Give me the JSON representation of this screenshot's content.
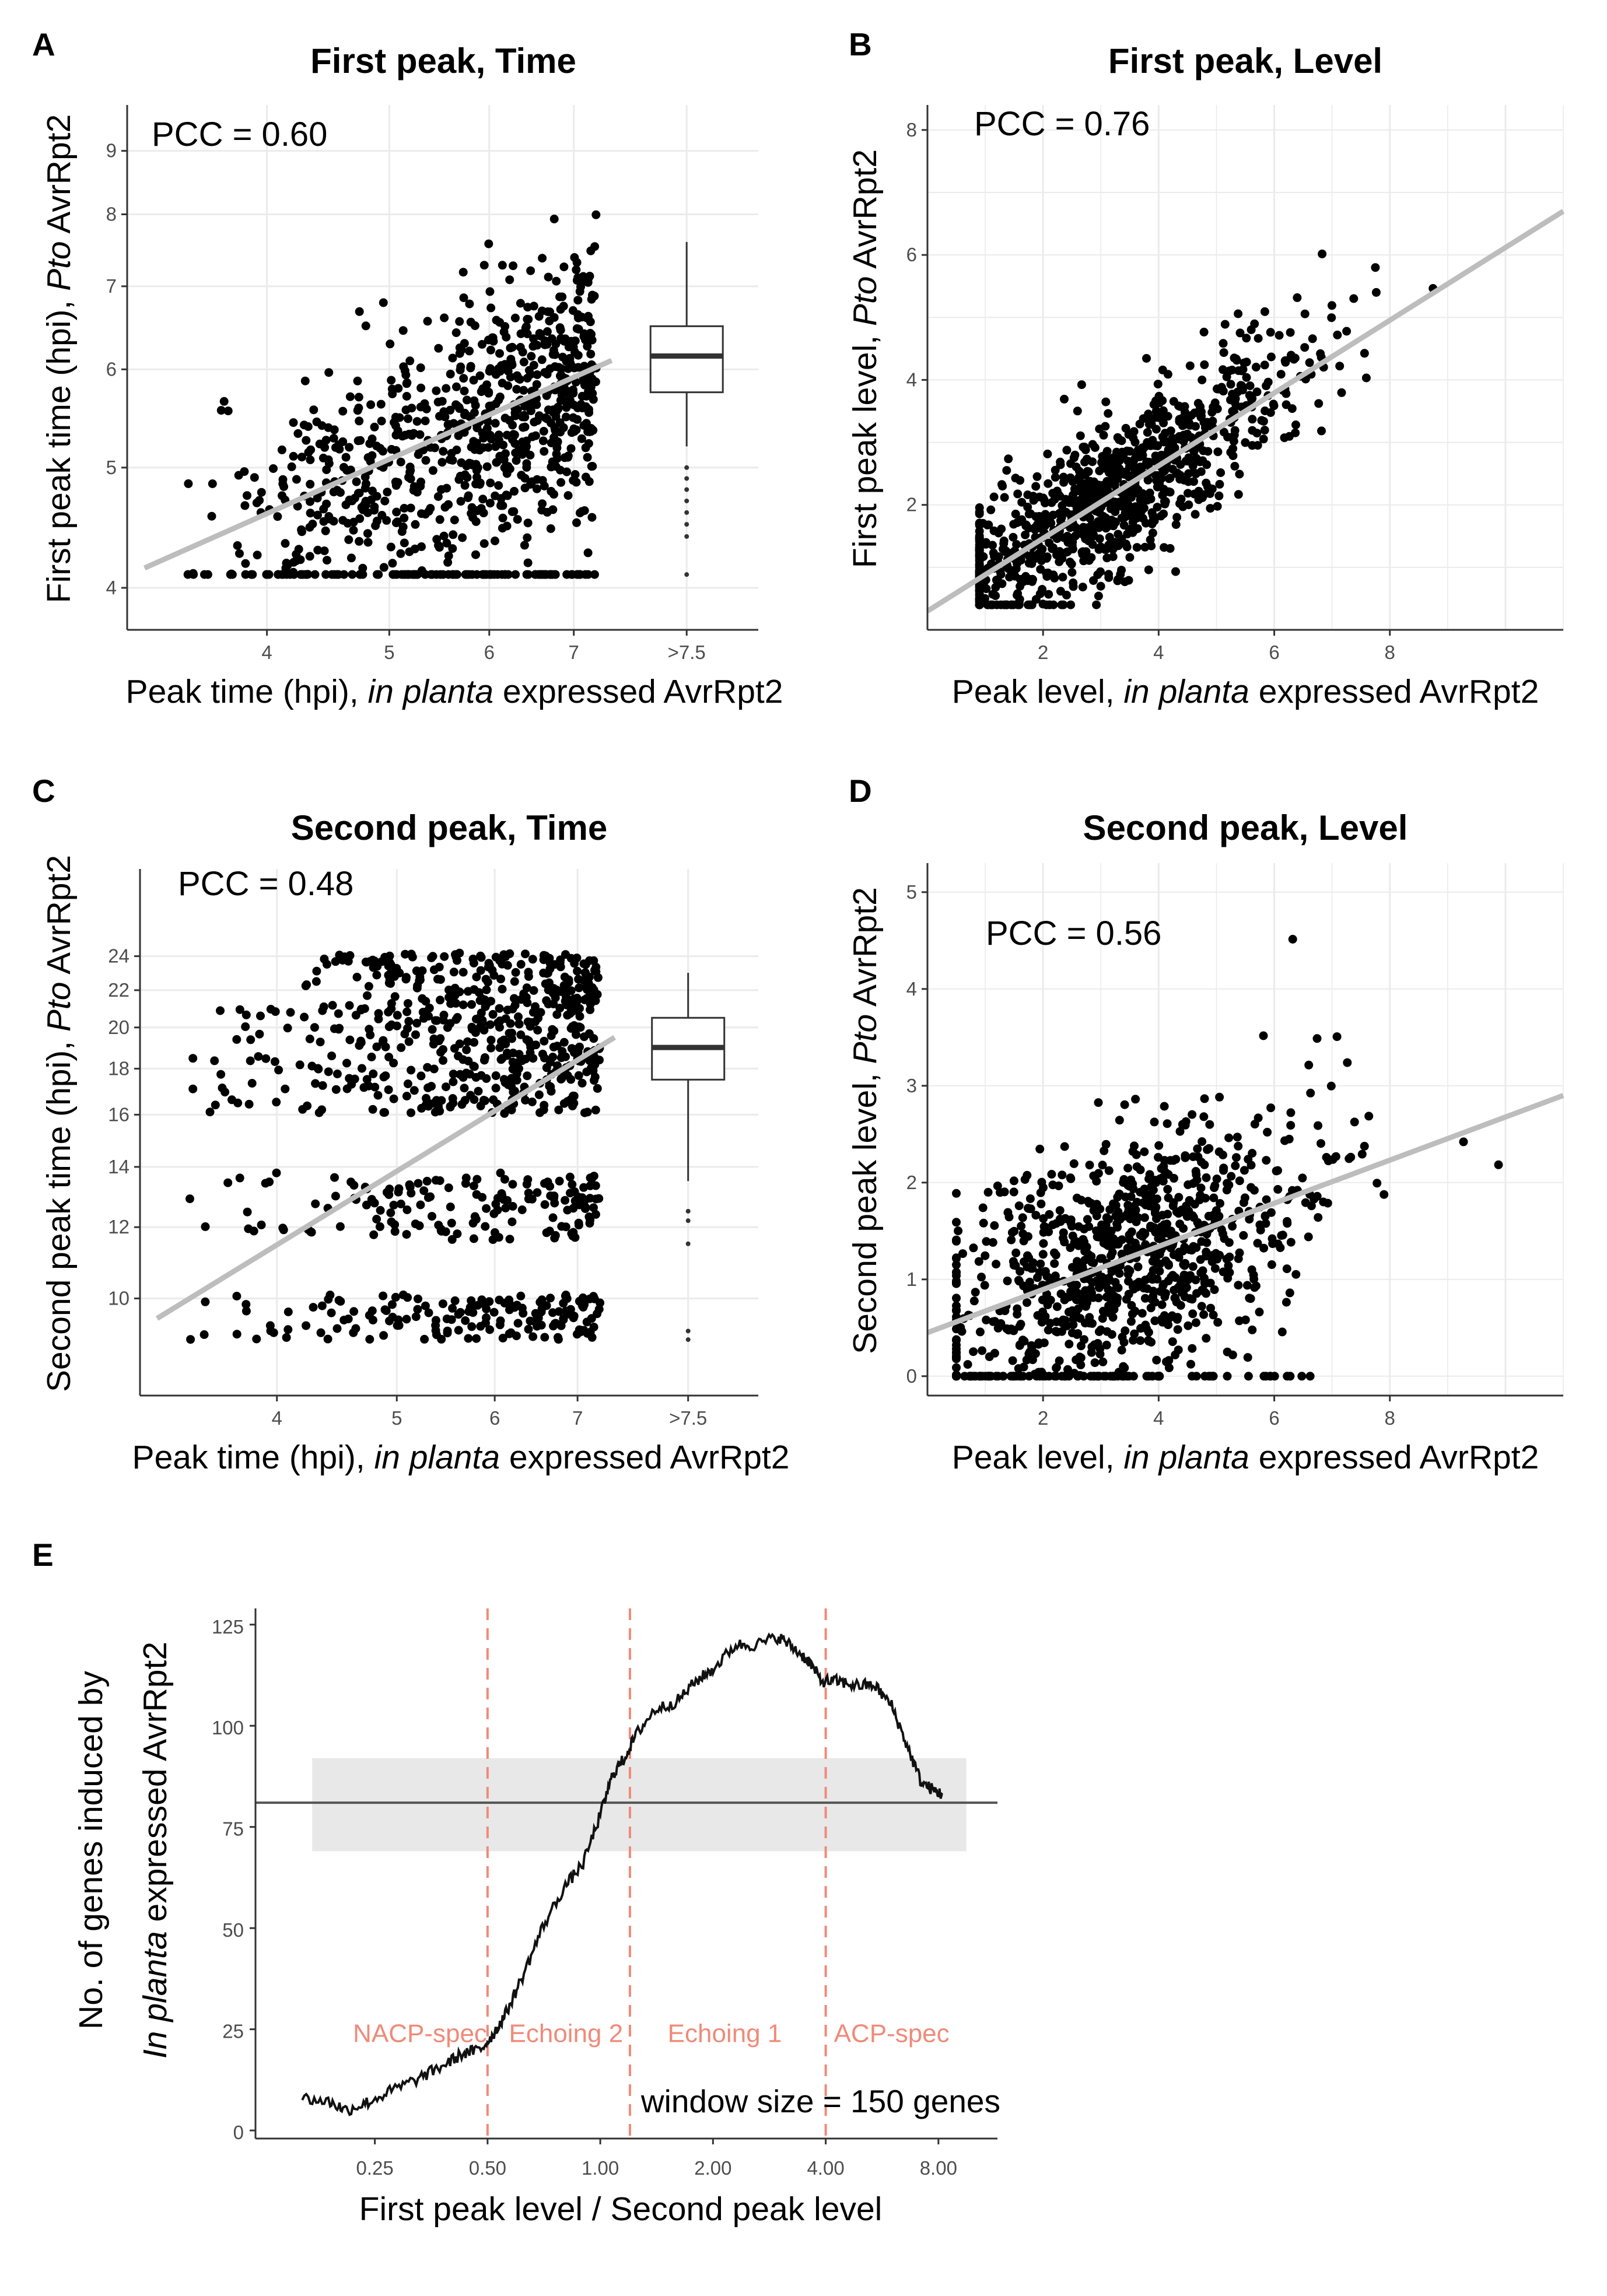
{
  "colors": {
    "points": "#000000",
    "fit_line": "#bdbdbd",
    "grid": "#ebebeb",
    "axis": "#333333",
    "dashed_lines": "#f08a78",
    "region_labels": "#f08a78",
    "band_fill": "#e8e8e8",
    "hline": "#555555",
    "curve": "#111111"
  },
  "chart_data": [
    {
      "panel": "A",
      "type": "scatter",
      "title": "First peak, Time",
      "xlabel_parts": [
        "Peak time (hpi), ",
        "in planta",
        " expressed AvrRpt2"
      ],
      "ylabel_parts": [
        "First peak time (hpi),  ",
        "Pto",
        " AvrRpt2"
      ],
      "x_scale": "log",
      "y_scale": "log",
      "x_ticks": [
        "4",
        "5",
        "6",
        "7",
        ">7.5"
      ],
      "y_ticks": [
        "4",
        "5",
        "6",
        "7",
        "8",
        "9"
      ],
      "xlim": [
        3.1,
        9.8
      ],
      "ylim": [
        3.7,
        9.8
      ],
      "annotation": "PCC = 0.60",
      "pcc": 0.6,
      "fit_line": {
        "x": [
          3.2,
          7.5
        ],
        "y": [
          4.15,
          6.1
        ]
      },
      "boxplot": {
        "x_label": ">7.5",
        "min": 5.2,
        "q1": 5.75,
        "median": 6.15,
        "q3": 6.5,
        "max": 7.6,
        "outliers": [
          5.0,
          4.9,
          4.8,
          4.7,
          4.6,
          4.5,
          4.4,
          4.1
        ]
      },
      "n_points": 900,
      "x_range": [
        3.3,
        7.3
      ],
      "y_range": [
        4.1,
        9.0
      ]
    },
    {
      "panel": "B",
      "type": "scatter",
      "title": "First peak, Level",
      "xlabel_parts": [
        "Peak level, ",
        "in planta",
        " expressed AvrRpt2"
      ],
      "ylabel_parts": [
        "First peak level,  ",
        "Pto",
        " AvrRpt2"
      ],
      "x_ticks": [
        "2",
        "4",
        "6",
        "8"
      ],
      "y_ticks": [
        "2",
        "4",
        "6",
        "8"
      ],
      "xlim": [
        0,
        11
      ],
      "ylim": [
        0,
        8.4
      ],
      "annotation": "PCC = 0.76",
      "pcc": 0.76,
      "fit_line": {
        "x": [
          0,
          11
        ],
        "y": [
          0.3,
          6.7
        ]
      },
      "n_points": 1000,
      "x_range": [
        0.9,
        10.5
      ],
      "y_range": [
        0.4,
        7.8
      ]
    },
    {
      "panel": "C",
      "type": "scatter",
      "title": "Second peak, Time",
      "xlabel_parts": [
        "Peak time (hpi), ",
        "in planta",
        " expressed AvrRpt2"
      ],
      "ylabel_parts": [
        "Second peak time (hpi),  ",
        "Pto",
        " AvrRpt2"
      ],
      "x_scale": "log",
      "y_scale": "log",
      "x_ticks": [
        "4",
        "5",
        "6",
        "7",
        ">7.5"
      ],
      "y_ticks": [
        "10",
        "12",
        "14",
        "16",
        "18",
        "20",
        "22",
        "24"
      ],
      "xlim": [
        3.1,
        9.8
      ],
      "ylim": [
        7.8,
        30
      ],
      "annotation": "PCC = 0.48",
      "pcc": 0.48,
      "fit_line": {
        "x": [
          3.2,
          7.5
        ],
        "y": [
          9.5,
          19.5
        ]
      },
      "boxplot": {
        "x_label": ">7.5",
        "min": 13.5,
        "q1": 17.5,
        "median": 19.0,
        "q3": 20.5,
        "max": 23.0,
        "outliers": [
          12.5,
          12.2,
          11.5,
          9.2,
          9.0
        ]
      },
      "n_points": 900,
      "x_range": [
        3.3,
        7.3
      ],
      "y_range": [
        9.0,
        24.5
      ]
    },
    {
      "panel": "D",
      "type": "scatter",
      "title": "Second peak, Level",
      "xlabel_parts": [
        "Peak level, ",
        "in planta",
        " expressed AvrRpt2"
      ],
      "ylabel_parts": [
        "Second peak level,  ",
        "Pto",
        " AvrRpt2"
      ],
      "x_ticks": [
        "2",
        "4",
        "6",
        "8"
      ],
      "y_ticks": [
        "0",
        "1",
        "2",
        "3",
        "4",
        "5"
      ],
      "xlim": [
        0,
        11
      ],
      "ylim": [
        -0.2,
        5.3
      ],
      "annotation": "PCC = 0.56",
      "pcc": 0.56,
      "fit_line": {
        "x": [
          0,
          11
        ],
        "y": [
          0.45,
          2.9
        ]
      },
      "n_points": 1000,
      "x_range": [
        0.5,
        10.5
      ],
      "y_range": [
        0,
        5.2
      ]
    },
    {
      "panel": "E",
      "type": "line",
      "xlabel": "First peak level / Second peak level",
      "ylabel_parts": [
        "No. of genes induced by",
        "In planta",
        "  expressed AvrRpt2"
      ],
      "x_scale": "log2",
      "x_ticks": [
        "0.25",
        "0.50",
        "1.00",
        "2.00",
        "4.00",
        "8.00"
      ],
      "y_ticks": [
        "0",
        "25",
        "50",
        "75",
        "100",
        "125"
      ],
      "xlim": [
        0.12,
        11.5
      ],
      "ylim": [
        -2,
        129
      ],
      "hline": 81,
      "band": {
        "x": [
          0.17,
          9.5
        ],
        "y": [
          69,
          92
        ]
      },
      "vlines": [
        0.5,
        1.2,
        4.0
      ],
      "region_labels": [
        {
          "text": "NACP-spec",
          "x": 0.33
        },
        {
          "text": "Echoing 2",
          "x": 0.81
        },
        {
          "text": "Echoing 1",
          "x": 2.15
        },
        {
          "text": "ACP-spec",
          "x": 6.0
        }
      ],
      "region_label_y": 24,
      "annotation": "window size = 150 genes",
      "curve": {
        "x": [
          0.16,
          0.19,
          0.21,
          0.24,
          0.28,
          0.33,
          0.38,
          0.43,
          0.48,
          0.52,
          0.56,
          0.62,
          0.7,
          0.8,
          0.9,
          1.0,
          1.08,
          1.16,
          1.25,
          1.4,
          1.6,
          1.8,
          2.0,
          2.3,
          2.6,
          3.0,
          3.3,
          3.6,
          3.9,
          4.3,
          4.8,
          5.4,
          6.0,
          6.6,
          7.2,
          7.8,
          8.2
        ],
        "y": [
          8,
          7,
          5,
          7,
          10,
          13,
          16,
          19,
          20,
          24,
          29,
          38,
          50,
          60,
          66,
          78,
          88,
          92,
          98,
          104,
          106,
          111,
          114,
          120,
          120,
          122,
          119,
          116,
          111,
          111,
          110,
          110,
          105,
          95,
          86,
          84,
          83
        ]
      }
    }
  ],
  "panels": {
    "A": {
      "letter": "A"
    },
    "B": {
      "letter": "B"
    },
    "C": {
      "letter": "C"
    },
    "D": {
      "letter": "D"
    },
    "E": {
      "letter": "E"
    }
  }
}
